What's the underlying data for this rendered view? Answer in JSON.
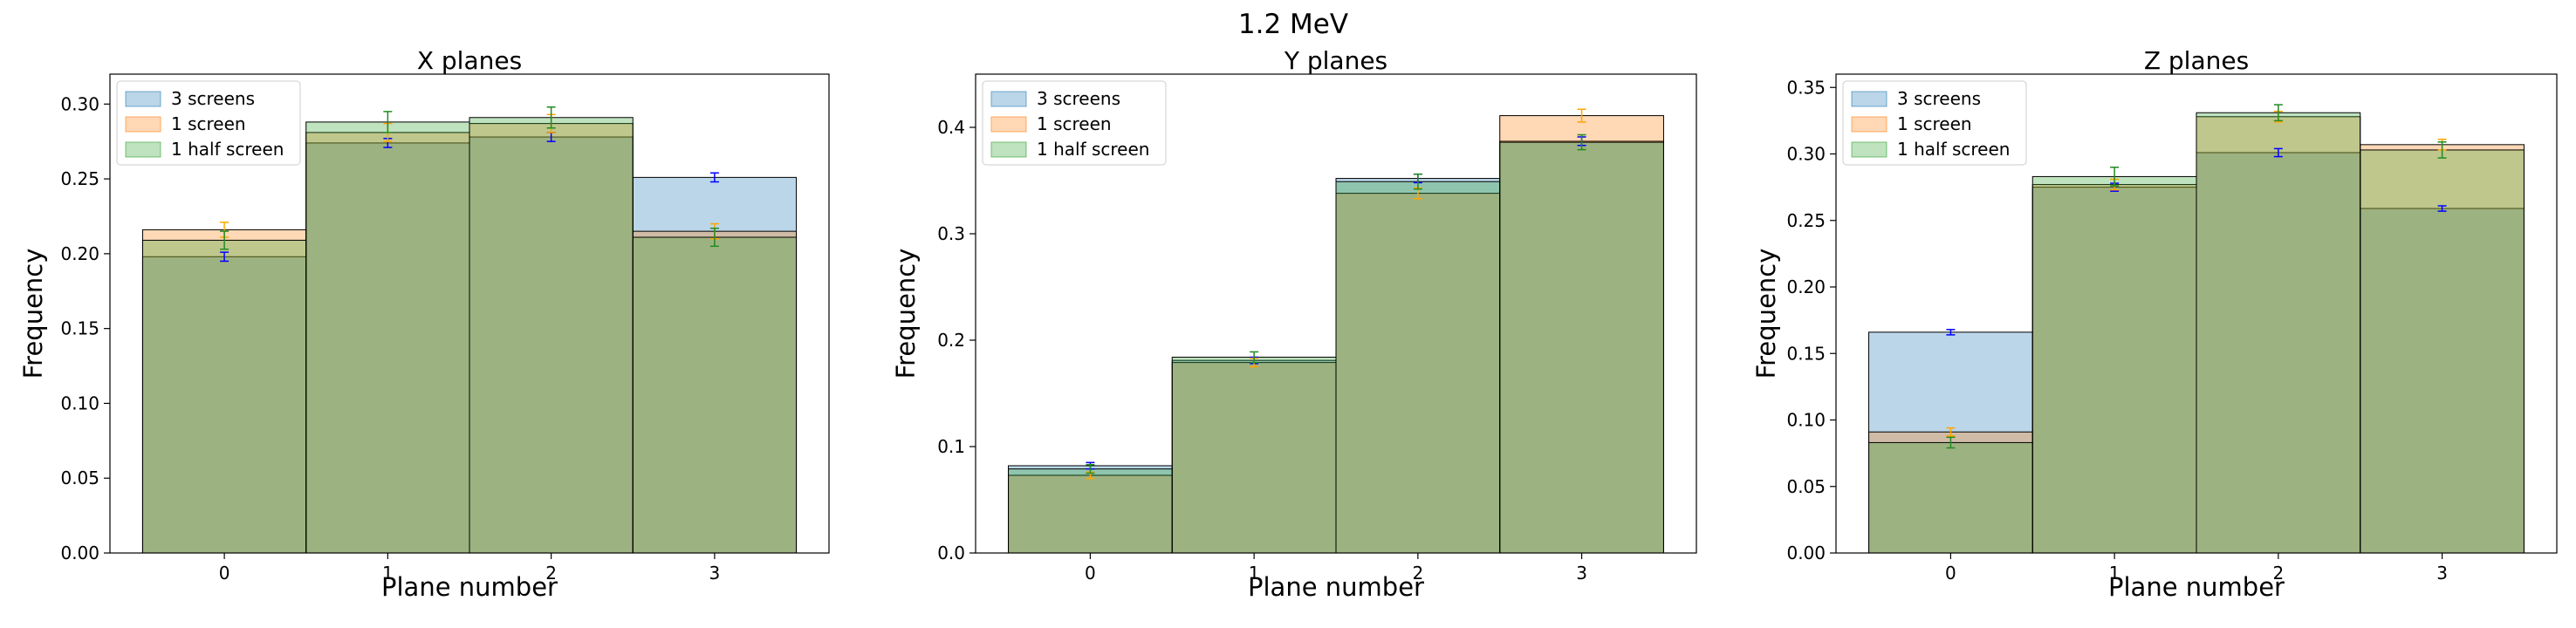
{
  "figure_title": "1.2 MeV",
  "colors": {
    "3 screens": "#1f77b4",
    "1 screen": "#ff7f0e",
    "1 half screen": "#2ca02c"
  },
  "chart_data": [
    {
      "type": "bar",
      "title": "X planes",
      "xlabel": "Plane number",
      "ylabel": "Frequency",
      "categories": [
        "0",
        "1",
        "2",
        "3"
      ],
      "ylim": [
        0,
        0.32
      ],
      "yticks": [
        "0.00",
        "0.05",
        "0.10",
        "0.15",
        "0.20",
        "0.25",
        "0.30"
      ],
      "legend_position": "top-left",
      "series": [
        {
          "name": "3 screens",
          "values": [
            0.198,
            0.274,
            0.278,
            0.251
          ],
          "errors": [
            0.003,
            0.003,
            0.003,
            0.003
          ]
        },
        {
          "name": "1 screen",
          "values": [
            0.216,
            0.281,
            0.287,
            0.215
          ],
          "errors": [
            0.005,
            0.006,
            0.006,
            0.005
          ]
        },
        {
          "name": "1 half screen",
          "values": [
            0.209,
            0.288,
            0.291,
            0.211
          ],
          "errors": [
            0.006,
            0.007,
            0.007,
            0.006
          ]
        }
      ]
    },
    {
      "type": "bar",
      "title": "Y planes",
      "xlabel": "Plane number",
      "ylabel": "Frequency",
      "categories": [
        "0",
        "1",
        "2",
        "3"
      ],
      "ylim": [
        0,
        0.45
      ],
      "yticks": [
        "0.0",
        "0.1",
        "0.2",
        "0.3",
        "0.4"
      ],
      "legend_position": "top-left",
      "series": [
        {
          "name": "3 screens",
          "values": [
            0.082,
            0.181,
            0.352,
            0.387
          ],
          "errors": [
            0.003,
            0.003,
            0.004,
            0.004
          ]
        },
        {
          "name": "1 screen",
          "values": [
            0.073,
            0.179,
            0.338,
            0.411
          ],
          "errors": [
            0.003,
            0.004,
            0.005,
            0.006
          ]
        },
        {
          "name": "1 half screen",
          "values": [
            0.079,
            0.184,
            0.349,
            0.386
          ],
          "errors": [
            0.004,
            0.005,
            0.007,
            0.007
          ]
        }
      ]
    },
    {
      "type": "bar",
      "title": "Z planes",
      "xlabel": "Plane number",
      "ylabel": "Frequency",
      "categories": [
        "0",
        "1",
        "2",
        "3"
      ],
      "ylim": [
        0,
        0.36
      ],
      "yticks": [
        "0.00",
        "0.05",
        "0.10",
        "0.15",
        "0.20",
        "0.25",
        "0.30",
        "0.35"
      ],
      "legend_position": "top-left",
      "series": [
        {
          "name": "3 screens",
          "values": [
            0.166,
            0.275,
            0.301,
            0.259
          ],
          "errors": [
            0.002,
            0.003,
            0.003,
            0.002
          ]
        },
        {
          "name": "1 screen",
          "values": [
            0.091,
            0.277,
            0.328,
            0.307
          ],
          "errors": [
            0.003,
            0.004,
            0.004,
            0.004
          ]
        },
        {
          "name": "1 half screen",
          "values": [
            0.083,
            0.283,
            0.331,
            0.303
          ],
          "errors": [
            0.004,
            0.007,
            0.006,
            0.006
          ]
        }
      ]
    }
  ]
}
